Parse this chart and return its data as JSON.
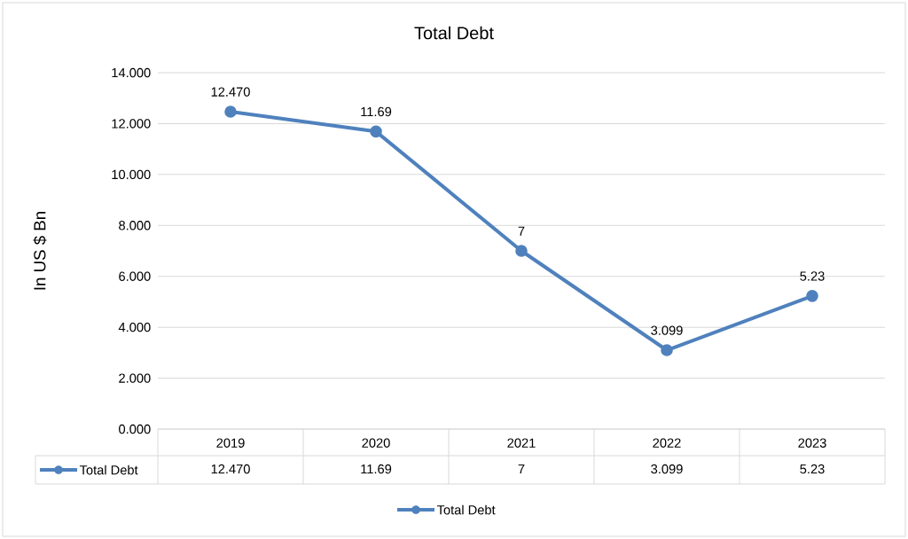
{
  "chart_data": {
    "type": "line",
    "title": "Total Debt",
    "ylabel": "In US $ Bn",
    "categories": [
      "2019",
      "2020",
      "2021",
      "2022",
      "2023"
    ],
    "series": [
      {
        "name": "Total Debt",
        "color": "#4f81bd",
        "values": [
          12.47,
          11.69,
          7,
          3.099,
          5.23
        ],
        "value_labels": [
          "12.470",
          "11.69",
          "7",
          "3.099",
          "5.23"
        ]
      }
    ],
    "ylim": [
      0,
      14
    ],
    "yticks": [
      {
        "value": 0,
        "label": "0.000"
      },
      {
        "value": 2,
        "label": "2.000"
      },
      {
        "value": 4,
        "label": "4.000"
      },
      {
        "value": 6,
        "label": "6.000"
      },
      {
        "value": 8,
        "label": "8.000"
      },
      {
        "value": 10,
        "label": "10.000"
      },
      {
        "value": 12,
        "label": "12.000"
      },
      {
        "value": 14,
        "label": "14.000"
      }
    ],
    "grid": "y",
    "legend": "bottom",
    "marker": "circle",
    "line_style": "solid"
  }
}
